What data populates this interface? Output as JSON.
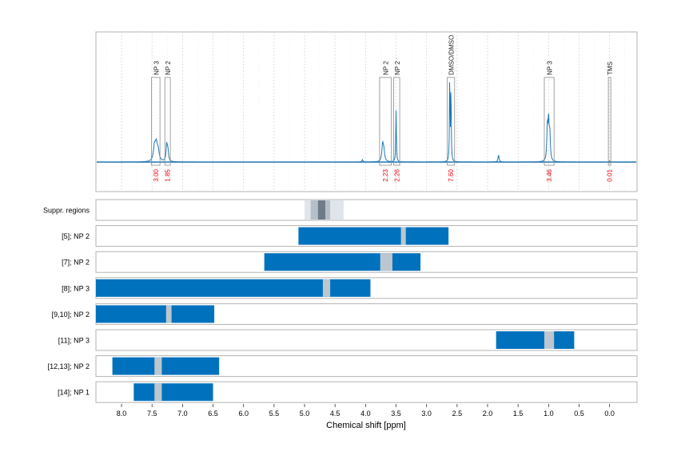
{
  "chart_data": {
    "type": "nmr-spectrum-with-region-bars",
    "xlabel": "Chemical shift [ppm]",
    "x_axis": {
      "reversed": true,
      "xlim": [
        8.42,
        -0.45
      ],
      "ticks": [
        "8.0",
        "7.5",
        "7.0",
        "6.5",
        "6.0",
        "5.5",
        "5.0",
        "4.5",
        "4.0",
        "3.5",
        "3.0",
        "2.5",
        "2.0",
        "1.5",
        "1.0",
        "0.5",
        "0.0"
      ],
      "tick_values": [
        8.0,
        7.5,
        7.0,
        6.5,
        6.0,
        5.5,
        5.0,
        4.5,
        4.0,
        3.5,
        3.0,
        2.5,
        2.0,
        1.5,
        1.0,
        0.5,
        0.0
      ]
    },
    "spectrum": {
      "color": "#1f77b4",
      "grid": "vertical dotted",
      "peaks": [
        {
          "ppm": 7.46,
          "height": 0.12,
          "width": 0.02
        },
        {
          "ppm": 7.43,
          "height": 0.13,
          "width": 0.02
        },
        {
          "ppm": 7.4,
          "height": 0.08,
          "width": 0.02
        },
        {
          "ppm": 7.26,
          "height": 0.14,
          "width": 0.012
        },
        {
          "ppm": 7.24,
          "height": 0.09,
          "width": 0.012
        },
        {
          "ppm": 3.72,
          "height": 0.14,
          "width": 0.015
        },
        {
          "ppm": 3.7,
          "height": 0.08,
          "width": 0.015
        },
        {
          "ppm": 3.5,
          "height": 0.43,
          "width": 0.006
        },
        {
          "ppm": 2.62,
          "height": 0.78,
          "width": 0.005
        },
        {
          "ppm": 2.6,
          "height": 0.68,
          "width": 0.005
        },
        {
          "ppm": 1.82,
          "height": 0.06,
          "width": 0.01
        },
        {
          "ppm": 1.02,
          "height": 0.28,
          "width": 0.01
        },
        {
          "ppm": 1.0,
          "height": 0.32,
          "width": 0.01
        },
        {
          "ppm": 0.98,
          "height": 0.22,
          "width": 0.01
        },
        {
          "ppm": 4.05,
          "height": 0.02,
          "width": 0.01
        },
        {
          "ppm": 0.0,
          "height": 0.01,
          "width": 0.005
        }
      ],
      "annotations": [
        {
          "label": "NP 3",
          "integral": "3.00",
          "from": 7.51,
          "to": 7.37
        },
        {
          "label": "NP 2",
          "integral": "1.85",
          "from": 7.29,
          "to": 7.2
        },
        {
          "label": "NP 2",
          "integral": "2.23",
          "from": 3.77,
          "to": 3.58
        },
        {
          "label": "NP 2",
          "integral": "2.26",
          "from": 3.54,
          "to": 3.44
        },
        {
          "label": "DMSO/DMSO",
          "integral": "7.60",
          "from": 2.66,
          "to": 2.54
        },
        {
          "label": "NP 3",
          "integral": "3.46",
          "from": 1.07,
          "to": 0.91
        },
        {
          "label": "TMS",
          "integral": "0.01",
          "from": 0.02,
          "to": -0.02
        }
      ],
      "integral_color": "#e8000b"
    },
    "region_rows": [
      {
        "label": "Suppr. regions",
        "type": "suppression",
        "bands": [
          {
            "from": 5.0,
            "to": 4.36,
            "shade": "#dfe5eb"
          },
          {
            "from": 4.9,
            "to": 4.58,
            "shade": "#b5bfc9"
          },
          {
            "from": 4.78,
            "to": 4.66,
            "shade": "#6f7b86"
          }
        ]
      },
      {
        "label": "[5]; NP 2",
        "from": 5.1,
        "to": 2.64,
        "gap": [
          3.42,
          3.34
        ]
      },
      {
        "label": "[7]; NP 2",
        "from": 5.66,
        "to": 3.1,
        "gap": [
          3.76,
          3.56
        ]
      },
      {
        "label": "[8]; NP 3",
        "from": 8.42,
        "to": 3.92,
        "gap": [
          4.7,
          4.58
        ]
      },
      {
        "label": "[9,10]; NP 2",
        "from": 8.42,
        "to": 6.48,
        "gap": [
          7.27,
          7.18
        ]
      },
      {
        "label": "[11]; NP 3",
        "from": 1.86,
        "to": 0.58,
        "gap": [
          1.07,
          0.91
        ]
      },
      {
        "label": "[12,13]; NP 2",
        "from": 8.15,
        "to": 6.4,
        "gap": [
          7.46,
          7.34
        ]
      },
      {
        "label": "[14]; NP 1",
        "from": 7.8,
        "to": 6.5,
        "gap": [
          7.46,
          7.34
        ]
      }
    ],
    "colors": {
      "bar": "#0072bd",
      "gap": "#bcc6cf",
      "frame": "#b3b3b3",
      "grid": "#cccccc"
    }
  }
}
